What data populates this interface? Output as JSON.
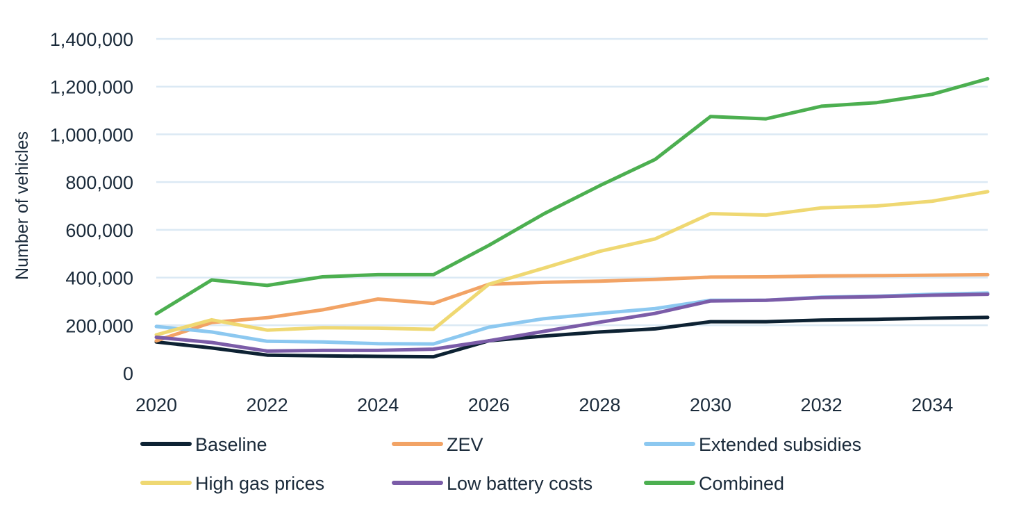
{
  "chart_data": {
    "type": "line",
    "title": "",
    "xlabel": "",
    "ylabel": "Number of vehicles",
    "x": [
      2020,
      2021,
      2022,
      2023,
      2024,
      2025,
      2026,
      2027,
      2028,
      2029,
      2030,
      2031,
      2032,
      2033,
      2034,
      2035
    ],
    "xticks": [
      "2020",
      "2022",
      "2024",
      "2026",
      "2028",
      "2030",
      "2032",
      "2034"
    ],
    "xlim": [
      2020,
      2035
    ],
    "yticks": [
      "0",
      "200,000",
      "400,000",
      "600,000",
      "800,000",
      "1,000,000",
      "1,200,000",
      "1,400,000"
    ],
    "ylim": [
      0,
      1400000
    ],
    "grid": "horizontal",
    "legend_position": "bottom",
    "series": [
      {
        "name": "Baseline",
        "color": "#0d2233",
        "values": [
          130000,
          105000,
          75000,
          72000,
          70000,
          68000,
          135000,
          155000,
          172000,
          185000,
          215000,
          215000,
          222000,
          225000,
          230000,
          233000
        ]
      },
      {
        "name": "ZEV",
        "color": "#f2a365",
        "values": [
          135000,
          212000,
          232000,
          265000,
          310000,
          292000,
          372000,
          380000,
          385000,
          392000,
          402000,
          403000,
          407000,
          408000,
          410000,
          412000
        ]
      },
      {
        "name": "Extended subsidies",
        "color": "#8cc8f0",
        "values": [
          195000,
          172000,
          133000,
          130000,
          123000,
          122000,
          192000,
          228000,
          250000,
          270000,
          305000,
          305000,
          318000,
          322000,
          330000,
          335000
        ]
      },
      {
        "name": "High gas prices",
        "color": "#efd872",
        "values": [
          160000,
          223000,
          180000,
          190000,
          188000,
          183000,
          372000,
          440000,
          510000,
          562000,
          668000,
          662000,
          692000,
          700000,
          720000,
          760000
        ]
      },
      {
        "name": "Low battery costs",
        "color": "#7b5ca8",
        "values": [
          150000,
          128000,
          92000,
          95000,
          95000,
          100000,
          135000,
          175000,
          213000,
          250000,
          302000,
          305000,
          316000,
          320000,
          326000,
          330000
        ]
      },
      {
        "name": "Combined",
        "color": "#4caf50",
        "values": [
          248000,
          390000,
          367000,
          403000,
          412000,
          412000,
          535000,
          668000,
          785000,
          895000,
          1075000,
          1065000,
          1118000,
          1133000,
          1168000,
          1233000
        ]
      }
    ]
  }
}
